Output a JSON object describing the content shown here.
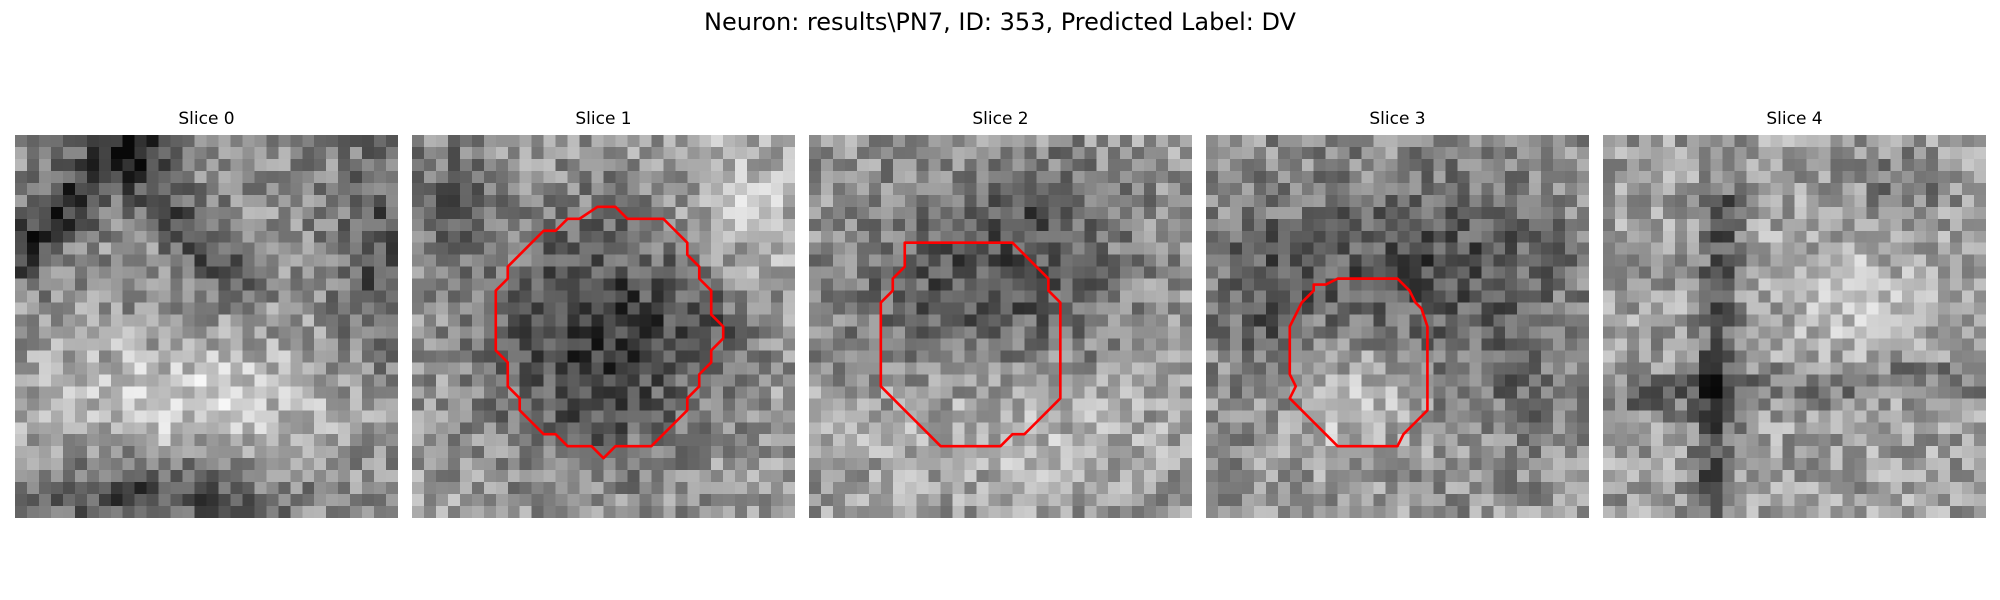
{
  "figure": {
    "suptitle": "Neuron: results\\PN7, ID: 353, Predicted Label: DV"
  },
  "panels": [
    {
      "title": "Slice 0"
    },
    {
      "title": "Slice 1"
    },
    {
      "title": "Slice 2"
    },
    {
      "title": "Slice 3"
    },
    {
      "title": "Slice 4"
    }
  ],
  "colors": {
    "contour": "#ff0000",
    "background": "#ffffff"
  },
  "colormap": "gray"
}
